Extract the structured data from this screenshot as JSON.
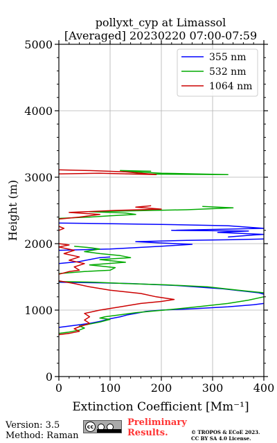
{
  "chart_data": {
    "type": "line",
    "title_line1": "pollyxt_cyp at Limassol",
    "title_line2": "[Averaged] 20230220 07:00-07:59",
    "xlabel": "Extinction Coefficient [Mm⁻¹]",
    "ylabel": "Height (m)",
    "xlim": [
      0,
      400
    ],
    "ylim": [
      0,
      5000
    ],
    "xticks": [
      0,
      100,
      200,
      300,
      400
    ],
    "yticks": [
      0,
      1000,
      2000,
      3000,
      4000,
      5000
    ],
    "grid": true,
    "legend_position": "top-right",
    "series": [
      {
        "name": "355 nm",
        "color": "#0000ff",
        "points": [
          [
            0,
            740
          ],
          [
            30,
            770
          ],
          [
            60,
            800
          ],
          [
            80,
            830
          ],
          [
            100,
            870
          ],
          [
            120,
            900
          ],
          [
            135,
            930
          ],
          [
            150,
            950
          ],
          [
            170,
            980
          ],
          [
            200,
            1000
          ],
          [
            260,
            1020
          ],
          [
            330,
            1050
          ],
          [
            380,
            1080
          ],
          [
            400,
            1100
          ],
          null,
          [
            0,
            1420
          ],
          [
            80,
            1410
          ],
          [
            140,
            1400
          ],
          [
            230,
            1370
          ],
          [
            320,
            1320
          ],
          [
            390,
            1260
          ],
          [
            400,
            1240
          ],
          null,
          [
            0,
            1700
          ],
          [
            40,
            1730
          ],
          [
            60,
            1760
          ],
          [
            80,
            1790
          ],
          [
            100,
            1800
          ],
          null,
          [
            0,
            1900
          ],
          [
            100,
            1920
          ],
          [
            200,
            1960
          ],
          [
            260,
            1990
          ],
          [
            200,
            2010
          ],
          [
            150,
            2030
          ],
          [
            250,
            2050
          ],
          [
            340,
            2060
          ],
          [
            400,
            2070
          ],
          null,
          [
            330,
            2100
          ],
          [
            380,
            2130
          ],
          [
            400,
            2140
          ],
          [
            310,
            2170
          ],
          [
            370,
            2190
          ],
          [
            220,
            2200
          ],
          [
            400,
            2230
          ],
          [
            330,
            2270
          ],
          [
            200,
            2290
          ],
          [
            0,
            2310
          ]
        ]
      },
      {
        "name": "532 nm",
        "color": "#00aa00",
        "points": [
          [
            0,
            650
          ],
          [
            20,
            670
          ],
          [
            40,
            700
          ],
          [
            50,
            730
          ],
          [
            40,
            760
          ],
          [
            60,
            790
          ],
          [
            80,
            820
          ],
          [
            100,
            860
          ],
          [
            80,
            880
          ],
          [
            90,
            900
          ],
          [
            120,
            930
          ],
          [
            150,
            960
          ],
          [
            190,
            990
          ],
          [
            220,
            1010
          ],
          [
            270,
            1050
          ],
          [
            330,
            1100
          ],
          [
            370,
            1150
          ],
          [
            400,
            1200
          ],
          null,
          [
            0,
            1430
          ],
          [
            70,
            1420
          ],
          [
            130,
            1400
          ],
          [
            210,
            1380
          ],
          [
            290,
            1350
          ],
          [
            350,
            1300
          ],
          [
            400,
            1260
          ],
          null,
          [
            0,
            1550
          ],
          [
            50,
            1580
          ],
          [
            100,
            1600
          ],
          [
            110,
            1640
          ],
          [
            60,
            1680
          ],
          [
            130,
            1720
          ],
          [
            80,
            1760
          ],
          [
            140,
            1790
          ],
          [
            120,
            1820
          ],
          [
            80,
            1850
          ],
          [
            50,
            1880
          ],
          [
            80,
            1920
          ],
          [
            60,
            1940
          ],
          [
            30,
            1960
          ],
          null,
          [
            0,
            2380
          ],
          [
            60,
            2400
          ],
          [
            100,
            2420
          ],
          [
            150,
            2440
          ],
          [
            130,
            2460
          ],
          [
            60,
            2480
          ],
          [
            250,
            2510
          ],
          [
            340,
            2540
          ],
          [
            280,
            2560
          ],
          null,
          [
            130,
            3050
          ],
          [
            330,
            3040
          ],
          [
            200,
            3060
          ],
          [
            150,
            3080
          ],
          [
            120,
            3100
          ],
          [
            180,
            3090
          ]
        ]
      },
      {
        "name": "1064 nm",
        "color": "#cc0000",
        "points": [
          [
            0,
            630
          ],
          [
            20,
            650
          ],
          [
            40,
            680
          ],
          [
            30,
            720
          ],
          [
            40,
            750
          ],
          [
            60,
            800
          ],
          [
            50,
            850
          ],
          [
            60,
            900
          ],
          [
            50,
            950
          ],
          [
            80,
            1000
          ],
          [
            120,
            1050
          ],
          [
            160,
            1100
          ],
          [
            200,
            1130
          ],
          [
            225,
            1160
          ],
          [
            190,
            1200
          ],
          [
            160,
            1250
          ],
          [
            100,
            1300
          ],
          [
            60,
            1350
          ],
          [
            30,
            1400
          ],
          [
            0,
            1440
          ],
          null,
          [
            0,
            1540
          ],
          [
            20,
            1580
          ],
          [
            40,
            1600
          ],
          [
            30,
            1650
          ],
          [
            50,
            1700
          ],
          [
            20,
            1750
          ],
          [
            40,
            1800
          ],
          [
            10,
            1850
          ],
          [
            30,
            1900
          ],
          [
            0,
            1950
          ],
          [
            20,
            1980
          ],
          [
            0,
            2000
          ],
          null,
          [
            0,
            2200
          ],
          [
            10,
            2230
          ],
          [
            0,
            2260
          ],
          null,
          [
            0,
            2370
          ],
          [
            40,
            2400
          ],
          [
            80,
            2440
          ],
          [
            20,
            2470
          ],
          [
            110,
            2500
          ],
          [
            200,
            2520
          ],
          [
            150,
            2550
          ],
          [
            180,
            2570
          ],
          null,
          [
            0,
            3050
          ],
          [
            80,
            3060
          ],
          [
            190,
            3040
          ],
          [
            130,
            3080
          ],
          [
            60,
            3100
          ],
          [
            0,
            3110
          ]
        ]
      }
    ]
  },
  "footer": {
    "version": "Version: 3.5",
    "method": "Method: Raman",
    "license_badge": "cc",
    "license_badge_detail": "BY   SA",
    "preliminary_line1": "Preliminary",
    "preliminary_line2": "Results.",
    "copyright_line1": "© TROPOS & ECoE 2023.",
    "copyright_line2": "CC BY SA 4.0 License."
  }
}
